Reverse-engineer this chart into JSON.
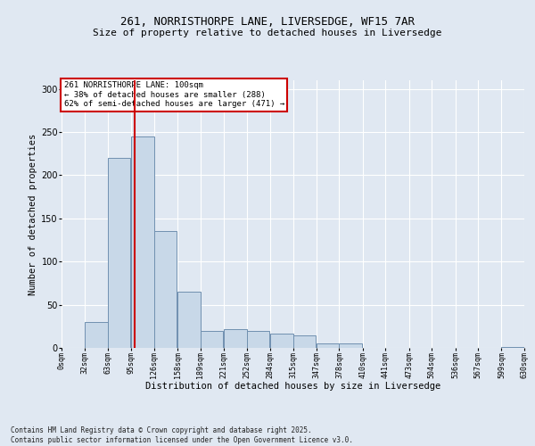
{
  "title1": "261, NORRISTHORPE LANE, LIVERSEDGE, WF15 7AR",
  "title2": "Size of property relative to detached houses in Liversedge",
  "xlabel": "Distribution of detached houses by size in Liversedge",
  "ylabel": "Number of detached properties",
  "footer1": "Contains HM Land Registry data © Crown copyright and database right 2025.",
  "footer2": "Contains public sector information licensed under the Open Government Licence v3.0.",
  "annotation_title": "261 NORRISTHORPE LANE: 100sqm",
  "annotation_line1": "← 38% of detached houses are smaller (288)",
  "annotation_line2": "62% of semi-detached houses are larger (471) →",
  "property_size": 100,
  "bar_left_edges": [
    0,
    32,
    63,
    95,
    126,
    158,
    189,
    221,
    252,
    284,
    315,
    347,
    378,
    410,
    441,
    473,
    504,
    536,
    567,
    599
  ],
  "bar_heights": [
    0,
    30,
    220,
    245,
    135,
    65,
    20,
    22,
    20,
    17,
    14,
    5,
    5,
    0,
    0,
    0,
    0,
    0,
    0,
    1
  ],
  "bin_width": 31,
  "bar_color": "#c8d8e8",
  "bar_edge_color": "#7090b0",
  "red_line_color": "#cc0000",
  "bg_color": "#e0e8f2",
  "grid_color": "#ffffff",
  "annotation_box_color": "#ffffff",
  "annotation_box_edge": "#cc0000",
  "ylim": [
    0,
    310
  ],
  "yticks": [
    0,
    50,
    100,
    150,
    200,
    250,
    300
  ],
  "xlim": [
    0,
    630
  ],
  "tick_labels": [
    "0sqm",
    "32sqm",
    "63sqm",
    "95sqm",
    "126sqm",
    "158sqm",
    "189sqm",
    "221sqm",
    "252sqm",
    "284sqm",
    "315sqm",
    "347sqm",
    "378sqm",
    "410sqm",
    "441sqm",
    "473sqm",
    "504sqm",
    "536sqm",
    "567sqm",
    "599sqm",
    "630sqm"
  ],
  "title1_fontsize": 9,
  "title2_fontsize": 8,
  "xlabel_fontsize": 7.5,
  "ylabel_fontsize": 7.5,
  "tick_fontsize": 6,
  "footer_fontsize": 5.5,
  "ann_fontsize": 6.5
}
